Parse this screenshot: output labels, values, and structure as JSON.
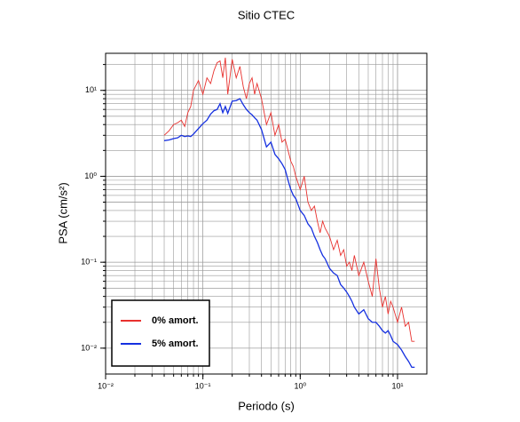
{
  "chart_data": {
    "type": "line",
    "title": "Sitio CTEC",
    "x_label": "Periodo (s)",
    "y_label": "PSA (cm/s²)",
    "x_log": true,
    "y_log": true,
    "grid": true,
    "minor_grid": true,
    "legend_position": "lower left",
    "xlim": [
      0.01,
      20
    ],
    "ylim": [
      0.005,
      27
    ],
    "xticks": [
      {
        "value": 0.01,
        "label": "10⁻²"
      },
      {
        "value": 0.1,
        "label": "10⁻¹"
      },
      {
        "value": 1,
        "label": "10⁰"
      },
      {
        "value": 10,
        "label": "10¹"
      }
    ],
    "yticks": [
      {
        "value": 0.01,
        "label": "10⁻²"
      },
      {
        "value": 0.1,
        "label": "10⁻¹"
      },
      {
        "value": 1,
        "label": "10⁰"
      },
      {
        "value": 10,
        "label": "10¹"
      }
    ],
    "x": [
      0.04,
      0.045,
      0.05,
      0.055,
      0.06,
      0.065,
      0.07,
      0.075,
      0.08,
      0.09,
      0.1,
      0.11,
      0.12,
      0.13,
      0.14,
      0.15,
      0.16,
      0.17,
      0.18,
      0.2,
      0.22,
      0.24,
      0.26,
      0.28,
      0.3,
      0.32,
      0.34,
      0.36,
      0.4,
      0.45,
      0.5,
      0.55,
      0.6,
      0.65,
      0.7,
      0.75,
      0.8,
      0.85,
      0.9,
      1.0,
      1.1,
      1.2,
      1.3,
      1.4,
      1.5,
      1.6,
      1.7,
      1.8,
      2.0,
      2.2,
      2.4,
      2.6,
      2.8,
      3.0,
      3.2,
      3.4,
      3.6,
      4.0,
      4.5,
      5.0,
      5.5,
      6.0,
      6.5,
      7.0,
      7.5,
      8.0,
      8.5,
      9.0,
      10,
      11,
      12,
      13,
      14,
      15
    ],
    "series": [
      {
        "name": "0% amort.",
        "color": "#e8312e",
        "values": [
          3.0,
          3.4,
          4.0,
          4.2,
          4.5,
          3.8,
          5.5,
          6.5,
          10,
          13,
          9,
          14,
          12,
          17,
          21,
          22,
          14,
          24,
          9,
          23,
          14,
          19,
          11,
          8,
          12,
          14,
          9,
          12,
          8,
          4,
          5.5,
          3,
          4,
          2.5,
          2.7,
          2,
          1.5,
          1.3,
          1.0,
          0.7,
          1.0,
          0.5,
          0.4,
          0.45,
          0.3,
          0.22,
          0.3,
          0.25,
          0.2,
          0.14,
          0.18,
          0.12,
          0.14,
          0.09,
          0.1,
          0.08,
          0.12,
          0.07,
          0.1,
          0.06,
          0.04,
          0.11,
          0.05,
          0.03,
          0.04,
          0.025,
          0.035,
          0.03,
          0.02,
          0.03,
          0.018,
          0.02,
          0.012,
          0.012
        ]
      },
      {
        "name": "5% amort.",
        "color": "#1530e0",
        "values": [
          2.6,
          2.65,
          2.75,
          2.8,
          3.0,
          2.9,
          2.95,
          2.9,
          3.1,
          3.6,
          4.1,
          4.5,
          5.3,
          5.8,
          6.0,
          7.0,
          5.5,
          6.5,
          5.4,
          7.5,
          7.6,
          8.0,
          6.8,
          6.0,
          5.5,
          5.2,
          4.8,
          4.5,
          3.5,
          2.2,
          2.5,
          1.8,
          1.6,
          1.4,
          1.2,
          0.9,
          0.7,
          0.6,
          0.55,
          0.4,
          0.35,
          0.28,
          0.25,
          0.2,
          0.17,
          0.14,
          0.12,
          0.11,
          0.085,
          0.075,
          0.07,
          0.055,
          0.05,
          0.045,
          0.04,
          0.035,
          0.03,
          0.025,
          0.028,
          0.022,
          0.02,
          0.02,
          0.018,
          0.016,
          0.015,
          0.016,
          0.014,
          0.012,
          0.011,
          0.0095,
          0.008,
          0.007,
          0.006,
          0.006
        ]
      }
    ]
  }
}
